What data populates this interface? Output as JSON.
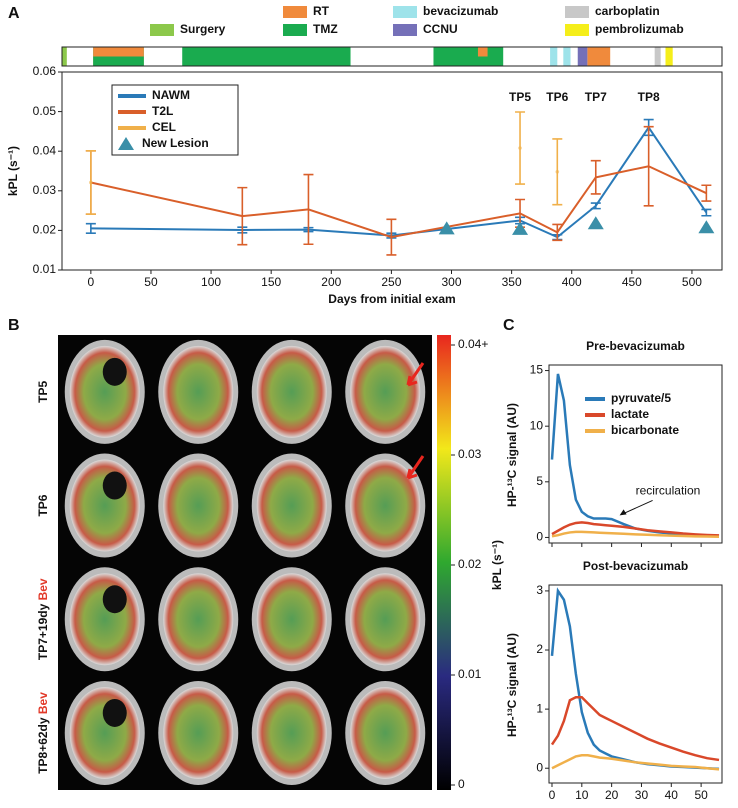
{
  "panels": [
    "A",
    "B",
    "C"
  ],
  "chart_data": [
    {
      "type": "line",
      "x_label": "Days from initial exam",
      "y_label": "kPL (s⁻¹)",
      "xlim": [
        -24,
        525
      ],
      "xticks": [
        0,
        50,
        100,
        150,
        200,
        250,
        300,
        350,
        400,
        450,
        500
      ],
      "ylim": [
        0.01,
        0.06
      ],
      "yticks": [
        0.01,
        0.02,
        0.03,
        0.04,
        0.05,
        0.06
      ],
      "treatments": [
        {
          "name": "Surgery",
          "color": "#8cc84b",
          "periods": [
            [
              -24,
              -20
            ]
          ]
        },
        {
          "name": "RT",
          "color": "#f08a3c",
          "periods": [
            [
              2,
              44
            ],
            [
              322,
              330
            ],
            [
              413,
              432
            ]
          ]
        },
        {
          "name": "TMZ",
          "color": "#1aab4f",
          "periods": [
            [
              2,
              44
            ],
            [
              76,
              216
            ],
            [
              285,
              343
            ]
          ]
        },
        {
          "name": "bevacizumab",
          "color": "#9ee3ea",
          "periods": [
            [
              382,
              388
            ],
            [
              393,
              399
            ]
          ]
        },
        {
          "name": "CCNU",
          "color": "#7570b8",
          "periods": [
            [
              405,
              413
            ]
          ]
        },
        {
          "name": "carboplatin",
          "color": "#c8c8c8",
          "periods": [
            [
              469,
              474
            ]
          ]
        },
        {
          "name": "pembrolizumab",
          "color": "#f5ee1a",
          "periods": [
            [
              478,
              484
            ]
          ]
        }
      ],
      "series": [
        {
          "name": "NAWM",
          "color": "#2a7ab8",
          "x": [
            0,
            126,
            181,
            250,
            357,
            388,
            420,
            464,
            512
          ],
          "values": [
            0.0205,
            0.0201,
            0.0202,
            0.0187,
            0.0225,
            0.0183,
            0.0262,
            0.046,
            0.0245
          ],
          "errors": [
            0.0012,
            0.0007,
            0.0005,
            0.0006,
            0.0008,
            0.0006,
            0.0007,
            0.002,
            0.0008
          ]
        },
        {
          "name": "T2L",
          "color": "#d95f2a",
          "x": [
            0,
            126,
            181,
            250,
            357,
            388,
            420,
            464,
            512
          ],
          "values": [
            0.0321,
            0.0236,
            0.0253,
            0.0183,
            0.0243,
            0.0195,
            0.0334,
            0.0362,
            0.0294
          ],
          "errors": [
            0.008,
            0.0072,
            0.0088,
            0.0045,
            0.0035,
            0.002,
            0.0042,
            0.01,
            0.002
          ]
        },
        {
          "name": "CEL",
          "color": "#f0b04a",
          "line": false,
          "x": [
            0,
            357,
            388
          ],
          "values": [
            0.0321,
            0.0408,
            0.0348
          ],
          "errors": [
            0.008,
            0.0091,
            0.0083
          ]
        },
        {
          "name": "New Lesion",
          "color": "#3a8fa8",
          "line": false,
          "marker": "triangle",
          "x": [
            296,
            357,
            420,
            512
          ],
          "values": [
            0.0205,
            0.0204,
            0.0218,
            0.0208
          ]
        }
      ],
      "annotations": [
        {
          "text": "TP5",
          "x": 357
        },
        {
          "text": "TP6",
          "x": 388
        },
        {
          "text": "TP7",
          "x": 420
        },
        {
          "text": "TP8",
          "x": 464
        }
      ]
    },
    {
      "type": "line",
      "title": "Pre-bevacizumab",
      "y_label": "HP-¹³C signal (AU)",
      "x": [
        0,
        2,
        4,
        6,
        8,
        10,
        12,
        14,
        16,
        18,
        20,
        24,
        28,
        32,
        36,
        40,
        44,
        48,
        52,
        56
      ],
      "xlim": [
        -1,
        57
      ],
      "xticks": [
        0,
        10,
        20,
        30,
        40,
        50
      ],
      "ylim": [
        -0.5,
        15.5
      ],
      "yticks": [
        0,
        5,
        10,
        15
      ],
      "series": [
        {
          "name": "pyruvate/5",
          "color": "#2a7ab8",
          "values": [
            7.0,
            14.7,
            12.3,
            6.5,
            3.4,
            2.3,
            1.9,
            1.7,
            1.7,
            1.7,
            1.65,
            1.2,
            0.8,
            0.6,
            0.45,
            0.35,
            0.28,
            0.22,
            0.17,
            0.13
          ]
        },
        {
          "name": "lactate",
          "color": "#d9482a",
          "values": [
            0.3,
            0.6,
            0.9,
            1.15,
            1.3,
            1.35,
            1.3,
            1.2,
            1.15,
            1.1,
            1.05,
            0.95,
            0.8,
            0.65,
            0.55,
            0.45,
            0.35,
            0.28,
            0.22,
            0.18
          ]
        },
        {
          "name": "bicarbonate",
          "color": "#f0b04a",
          "values": [
            0.1,
            0.2,
            0.35,
            0.45,
            0.5,
            0.5,
            0.48,
            0.45,
            0.42,
            0.4,
            0.38,
            0.33,
            0.28,
            0.24,
            0.2,
            0.16,
            0.13,
            0.1,
            0.08,
            0.06
          ]
        }
      ],
      "annotations": [
        {
          "text": "recirculation",
          "x": 22,
          "y": 1.8
        }
      ]
    },
    {
      "type": "line",
      "title": "Post-bevacizumab",
      "y_label": "HP-¹³C signal (AU)",
      "x_label": "Time (s)",
      "x": [
        0,
        2,
        4,
        6,
        8,
        10,
        12,
        14,
        16,
        18,
        20,
        24,
        28,
        32,
        36,
        40,
        44,
        48,
        52,
        56
      ],
      "xlim": [
        -1,
        57
      ],
      "xticks": [
        0,
        10,
        20,
        30,
        40,
        50
      ],
      "ylim": [
        -0.25,
        3.1
      ],
      "yticks": [
        0,
        1,
        2,
        3
      ],
      "series": [
        {
          "name": "pyruvate/5",
          "color": "#2a7ab8",
          "values": [
            1.9,
            3.0,
            2.85,
            2.4,
            1.6,
            0.95,
            0.6,
            0.4,
            0.3,
            0.25,
            0.2,
            0.15,
            0.1,
            0.07,
            0.05,
            0.03,
            0.02,
            0.01,
            0.0,
            -0.01
          ]
        },
        {
          "name": "lactate",
          "color": "#d9482a",
          "values": [
            0.4,
            0.55,
            0.8,
            1.15,
            1.2,
            1.2,
            1.1,
            1.0,
            0.9,
            0.85,
            0.8,
            0.7,
            0.6,
            0.5,
            0.42,
            0.35,
            0.28,
            0.22,
            0.17,
            0.14
          ]
        },
        {
          "name": "bicarbonate",
          "color": "#f0b04a",
          "values": [
            0.0,
            0.05,
            0.1,
            0.15,
            0.2,
            0.22,
            0.22,
            0.2,
            0.18,
            0.17,
            0.16,
            0.13,
            0.1,
            0.08,
            0.06,
            0.04,
            0.03,
            0.02,
            0.0,
            -0.02
          ]
        }
      ]
    }
  ],
  "images": {
    "rows": [
      {
        "label": "TP5"
      },
      {
        "label": "TP6"
      },
      {
        "label": "TP7+19dy",
        "highlight": "Bev"
      },
      {
        "label": "TP8+62dy",
        "highlight": "Bev"
      }
    ],
    "colorbar": {
      "label": "kPL (s⁻¹)",
      "lim": [
        0,
        0.04
      ],
      "ticks": [
        0,
        0.01,
        0.02,
        0.03,
        {
          "value": 0.04,
          "label": "0.04+"
        }
      ]
    }
  }
}
